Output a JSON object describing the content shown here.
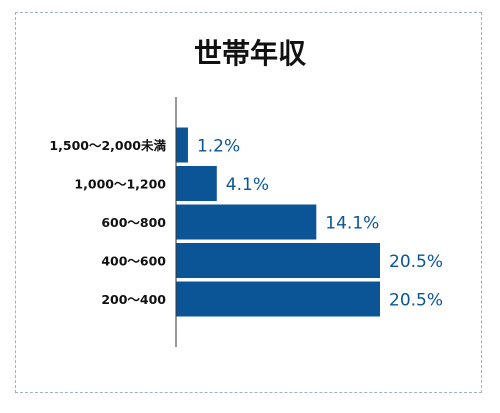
{
  "colors": {
    "bar": "#0b5596",
    "label": "#0b5596",
    "axis": "#333333",
    "text": "#111111",
    "frame": "#9fb0c8"
  },
  "chart_data": {
    "type": "bar",
    "orientation": "horizontal",
    "title": "世帯年収",
    "categories": [
      "1,500～2,000未満",
      "1,000～1,200",
      "600～800",
      "400～600",
      "200～400"
    ],
    "values": [
      1.2,
      4.1,
      14.1,
      20.5,
      20.5
    ],
    "value_labels": [
      "1.2%",
      "4.1%",
      "14.1%",
      "20.5%",
      "20.5%"
    ],
    "unit": "%",
    "xlim": [
      0,
      20.5
    ],
    "grid": false,
    "legend": "none"
  }
}
